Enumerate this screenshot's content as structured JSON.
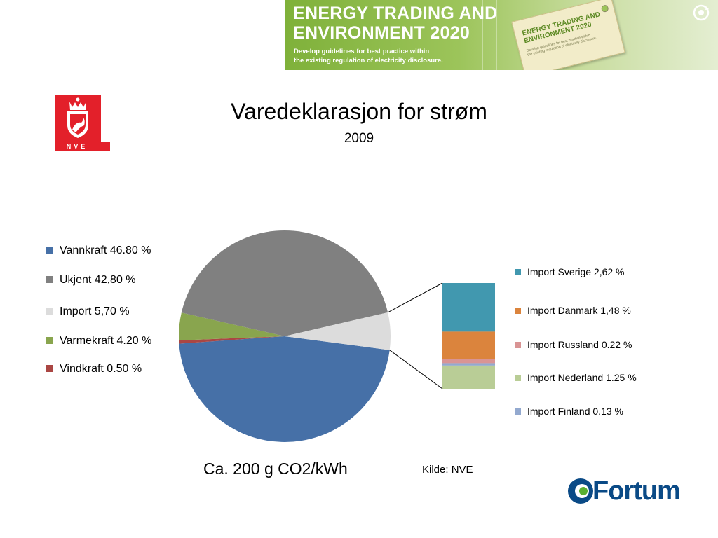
{
  "banner": {
    "title_line1": "ENERGY TRADING AND",
    "title_line2": "ENVIRONMENT 2020",
    "subtitle_line1": "Develop guidelines for best practice within",
    "subtitle_line2": "the existing regulation of electricity disclosure.",
    "tag_title_line1": "ENERGY TRADING AND",
    "tag_title_line2": "ENVIRONMENT 2020",
    "tag_sub_line1": "Develop guidelines for best practice within",
    "tag_sub_line2": "the existing regulation of electricity disclosure.",
    "color": "#8dbb47"
  },
  "logos": {
    "nve": {
      "label": "NVE",
      "color": "#e3202a"
    },
    "fortum": {
      "label": "Fortum",
      "color": "#0a4a86",
      "accent": "#5ab031"
    }
  },
  "chart_data": {
    "type": "pie",
    "title": "Varedeklarasjon for strøm",
    "subtitle": "2009",
    "main": {
      "slices": [
        {
          "label": "Vannkraft 46.80 %",
          "value": 46.8,
          "color": "#4670a7"
        },
        {
          "label": "Vindkraft 0.50 %",
          "value": 0.5,
          "color": "#aa4643"
        },
        {
          "label": "Varmekraft 4.20 %",
          "value": 4.2,
          "color": "#89a54e"
        },
        {
          "label": "Ukjent 42,80 %",
          "value": 42.8,
          "color": "#808080"
        },
        {
          "label": "Import 5,70 %",
          "value": 5.7,
          "color": "#dcdcdc"
        }
      ],
      "legend_order": [
        0,
        3,
        4,
        2,
        1
      ],
      "legend_placement": "left"
    },
    "breakdown": {
      "of": "Import 5,70 %",
      "items": [
        {
          "label": "Import Sverige 2,62 %",
          "value": 2.62,
          "color": "#4198af"
        },
        {
          "label": "Import Danmark 1,48 %",
          "value": 1.48,
          "color": "#db843d"
        },
        {
          "label": "Import Russland 0.22 %",
          "value": 0.22,
          "color": "#d99494"
        },
        {
          "label": "Import Finland 0.13 %",
          "value": 0.13,
          "color": "#93a9cf"
        },
        {
          "label": "Import Nederland 1.25 %",
          "value": 1.25,
          "color": "#b9cd96"
        }
      ],
      "legend_order": [
        0,
        1,
        2,
        4,
        3
      ],
      "legend_placement": "right"
    }
  },
  "footer": {
    "co2": "Ca. 200 g CO2/kWh",
    "source": "Kilde: NVE"
  }
}
